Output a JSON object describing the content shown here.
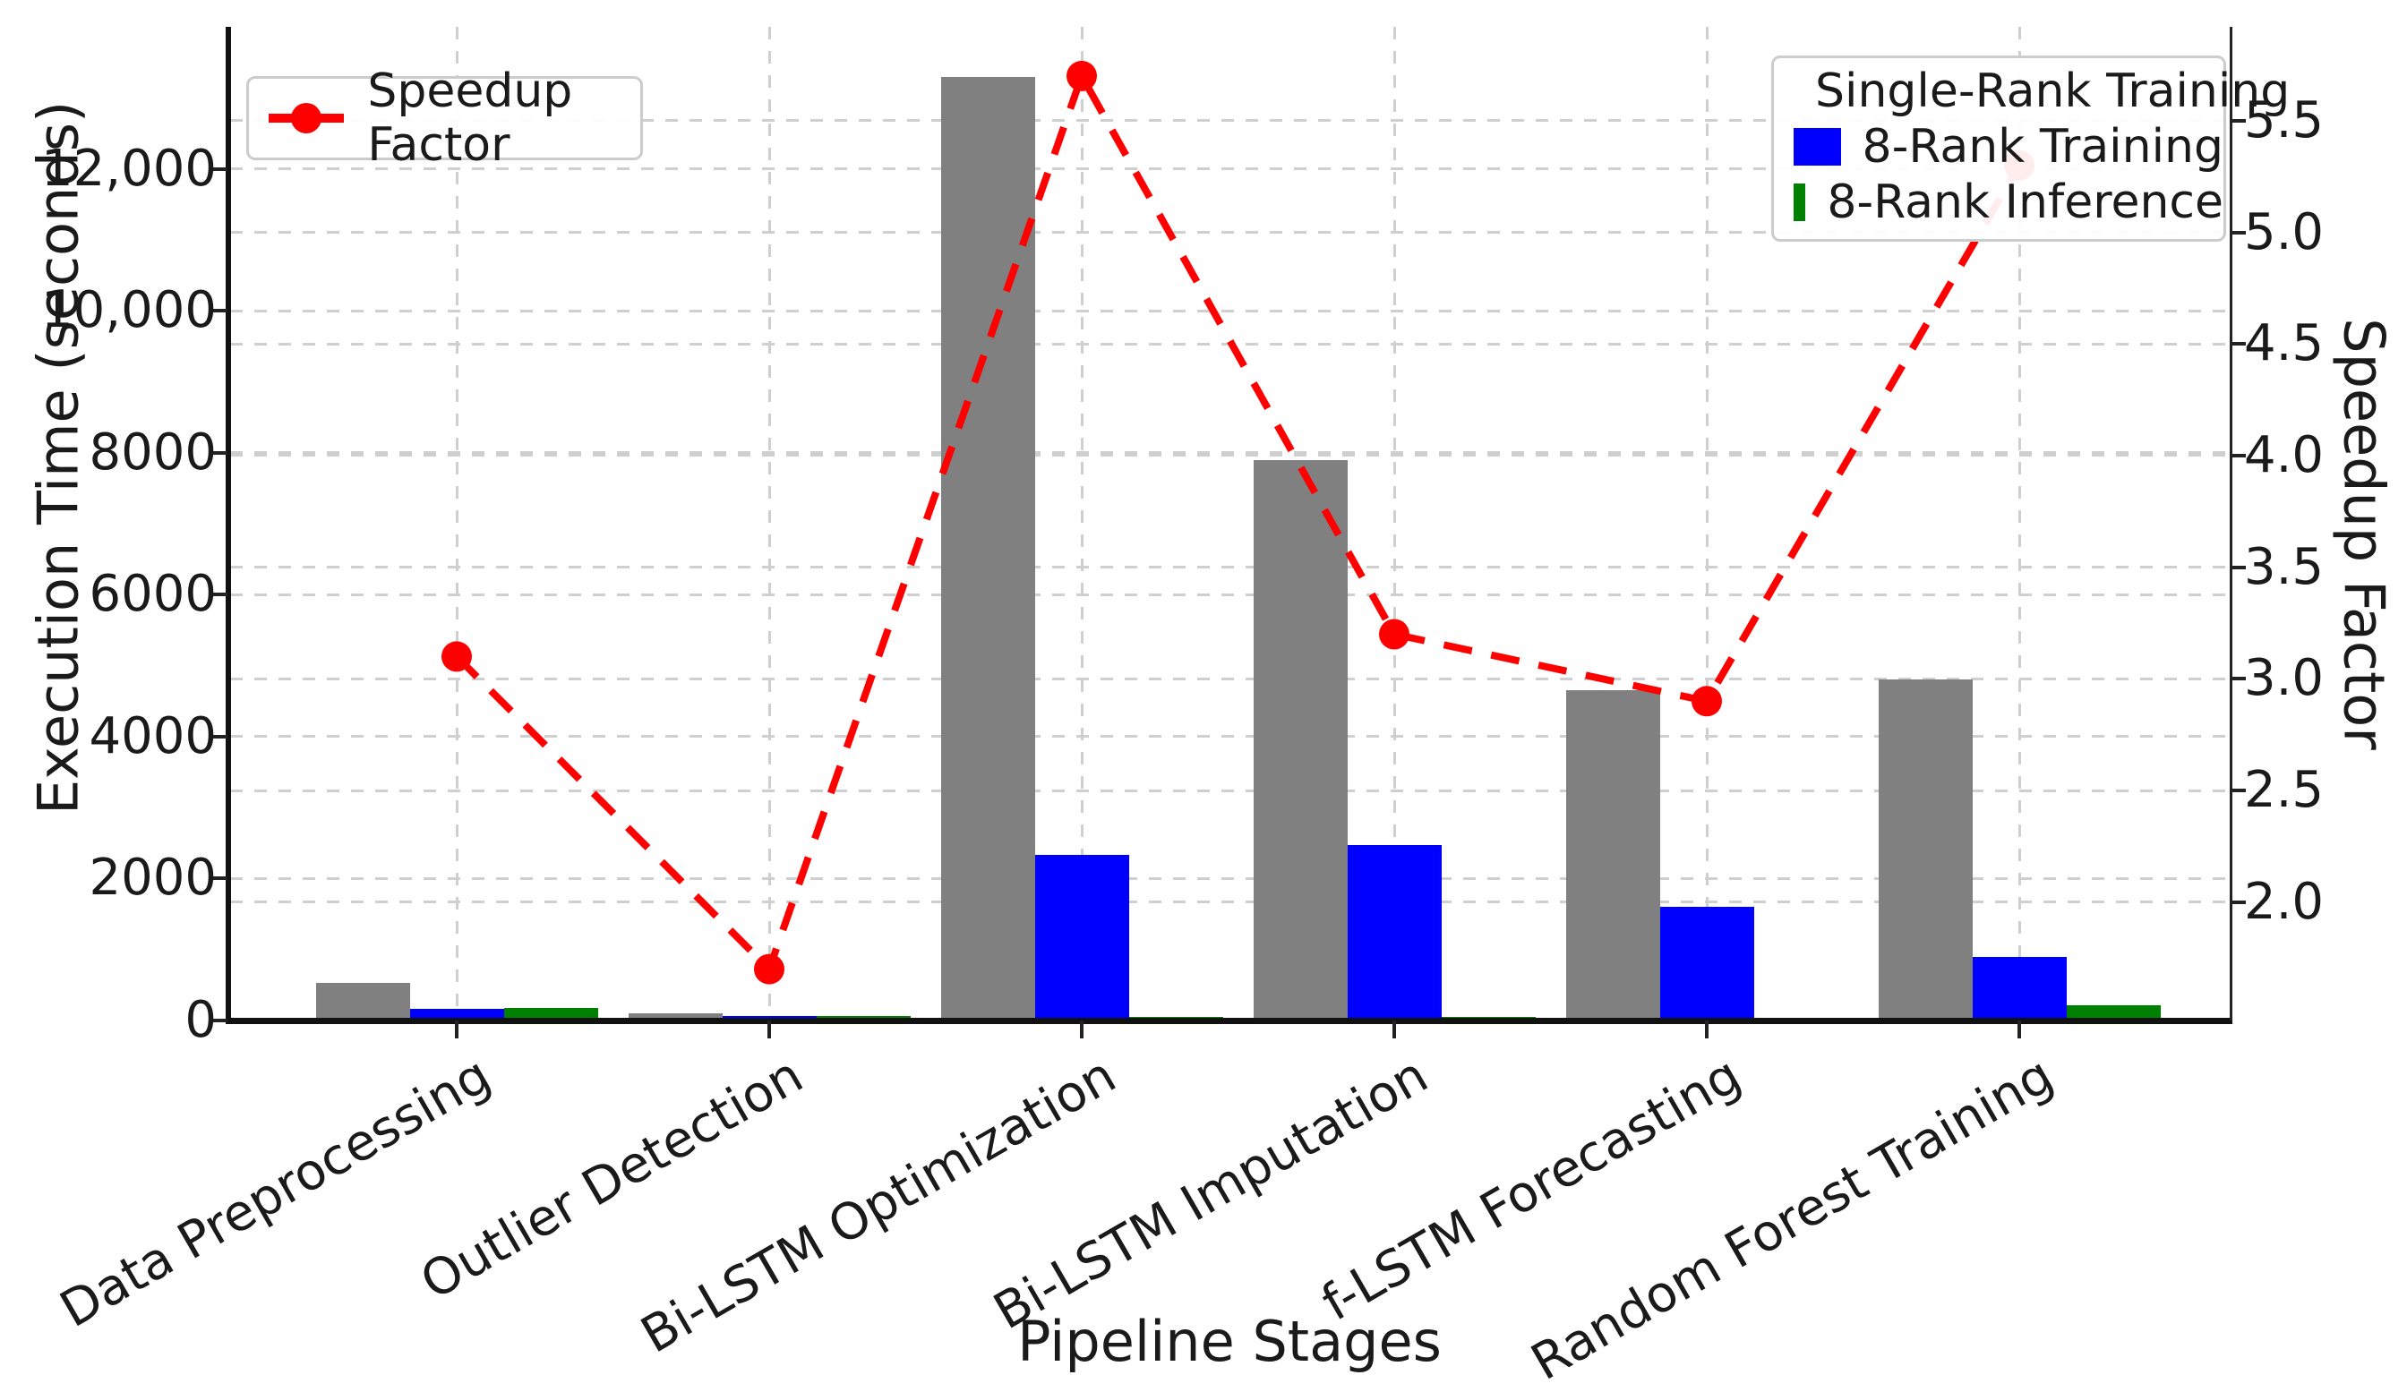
{
  "figure": {
    "xlabel": "Pipeline Stages",
    "ylabel_left": "Execution Time (seconds)",
    "ylabel_right": "Speedup Factor"
  },
  "legend_line": {
    "label": "Speedup Factor"
  },
  "colors": {
    "single_rank": "#808080",
    "eight_rank_training": "#0000ff",
    "eight_rank_inference": "#008000",
    "speedup_line": "#ff0000",
    "grid": "#cfcfcf",
    "text": "#1a1a1a"
  },
  "chart_data": {
    "type": "bar",
    "title": "",
    "xlabel": "Pipeline Stages",
    "ylabel": "Execution Time (seconds)",
    "ylabel_right": "Speedup Factor",
    "grid": "both, dashed",
    "legend_position": "line legend upper-left, bar legend upper-right",
    "categories": [
      "Data Preprocessing",
      "Outlier Detection",
      "Bi-LSTM Optimization",
      "Bi-LSTM Imputation",
      "f-LSTM Forecasting",
      "Random Forest Training"
    ],
    "series": [
      {
        "name": "Single-Rank Training",
        "color": "#808080",
        "values": [
          535,
          105,
          13300,
          7900,
          4650,
          4800
        ]
      },
      {
        "name": "8-Rank Training",
        "color": "#0000ff",
        "values": [
          170,
          60,
          2330,
          2470,
          1600,
          900
        ]
      },
      {
        "name": "8-Rank Inference",
        "color": "#008000",
        "values": [
          180,
          68,
          50,
          45,
          40,
          220
        ]
      }
    ],
    "line_series": {
      "name": "Speedup Factor",
      "type": "line",
      "style": "red dashed with circle markers",
      "axis": "right",
      "values": [
        3.1,
        1.7,
        5.7,
        3.2,
        2.9,
        5.3
      ]
    },
    "left_axis": {
      "ticks": [
        0,
        2000,
        4000,
        6000,
        8000,
        10000,
        12000
      ],
      "tick_labels": [
        "0",
        "2000",
        "4000",
        "6000",
        "8000",
        "10,000",
        "12,000"
      ],
      "ylim": [
        0,
        14000
      ]
    },
    "right_axis": {
      "ticks": [
        2.0,
        2.5,
        3.0,
        3.5,
        4.0,
        4.5,
        5.0,
        5.5
      ],
      "tick_labels": [
        "2.0",
        "2.5",
        "3.0",
        "3.5",
        "4.0",
        "4.5",
        "5.0",
        "5.5"
      ],
      "ylim": [
        1.47,
        5.92
      ]
    }
  }
}
